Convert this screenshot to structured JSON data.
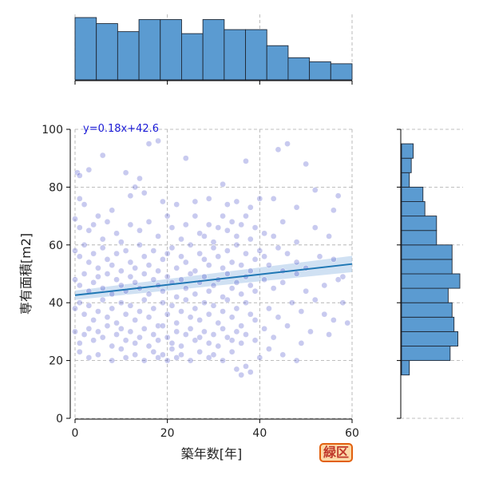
{
  "colors": {
    "hist_fill": "#5b9bd1",
    "hist_edge": "#1f2937",
    "point": "#3b3fc4",
    "reg_line": "#1f77b4",
    "ci_band": "#a9c9ea",
    "grid": "#aaaaaa",
    "annotation": "#1a1ad6",
    "badge_text": "#c0392b",
    "badge_bg": "#fcd9a8",
    "badge_border": "#e2600f"
  },
  "badge": {
    "text": "緑区"
  },
  "chart_data": {
    "type": "scatter",
    "title": "",
    "xlabel": "築年数[年]",
    "ylabel": "専有面積[m2]",
    "xlim": [
      0,
      60
    ],
    "ylim": [
      0,
      100
    ],
    "xticks": [
      "0",
      "20",
      "40",
      "60"
    ],
    "yticks": [
      "0",
      "20",
      "40",
      "60",
      "80",
      "100"
    ],
    "grid": true,
    "annotation": "y=0.18x+42.6",
    "regression": {
      "slope": 0.18,
      "intercept": 42.6,
      "ci_halfwidth_ends": [
        1.6,
        2.8
      ]
    },
    "points": [
      [
        0.5,
        85
      ],
      [
        1,
        84
      ],
      [
        3,
        86
      ],
      [
        6,
        91
      ],
      [
        11,
        85
      ],
      [
        14,
        83
      ],
      [
        16,
        95
      ],
      [
        18,
        96
      ],
      [
        24,
        90
      ],
      [
        32,
        81
      ],
      [
        37,
        89
      ],
      [
        44,
        93
      ],
      [
        46,
        95
      ],
      [
        50,
        88
      ],
      [
        52,
        79
      ],
      [
        57,
        77
      ],
      [
        1,
        76
      ],
      [
        2,
        74
      ],
      [
        5,
        70
      ],
      [
        8,
        72
      ],
      [
        12,
        77
      ],
      [
        13,
        80
      ],
      [
        15,
        78
      ],
      [
        19,
        75
      ],
      [
        22,
        74
      ],
      [
        26,
        75
      ],
      [
        29,
        76
      ],
      [
        33,
        74
      ],
      [
        35,
        75
      ],
      [
        38,
        73
      ],
      [
        40,
        76
      ],
      [
        43,
        76
      ],
      [
        48,
        73
      ],
      [
        56,
        72
      ],
      [
        0,
        69
      ],
      [
        1,
        66
      ],
      [
        3,
        65
      ],
      [
        4,
        67
      ],
      [
        6,
        62
      ],
      [
        7,
        68
      ],
      [
        9,
        64
      ],
      [
        10,
        61
      ],
      [
        12,
        67
      ],
      [
        14,
        65
      ],
      [
        16,
        68
      ],
      [
        18,
        63
      ],
      [
        20,
        70
      ],
      [
        21,
        66
      ],
      [
        23,
        62
      ],
      [
        24,
        67
      ],
      [
        26,
        70
      ],
      [
        27,
        64
      ],
      [
        28,
        63
      ],
      [
        29,
        67
      ],
      [
        30,
        61
      ],
      [
        31,
        66
      ],
      [
        32,
        70
      ],
      [
        33,
        65
      ],
      [
        34,
        68
      ],
      [
        35,
        63
      ],
      [
        36,
        67
      ],
      [
        37,
        70
      ],
      [
        38,
        62
      ],
      [
        39,
        66
      ],
      [
        41,
        64
      ],
      [
        43,
        63
      ],
      [
        45,
        68
      ],
      [
        48,
        61
      ],
      [
        52,
        66
      ],
      [
        55,
        63
      ],
      [
        0,
        58
      ],
      [
        1,
        56
      ],
      [
        2,
        60
      ],
      [
        3,
        54
      ],
      [
        4,
        57
      ],
      [
        5,
        52
      ],
      [
        6,
        59
      ],
      [
        7,
        55
      ],
      [
        8,
        53
      ],
      [
        9,
        57
      ],
      [
        10,
        51
      ],
      [
        11,
        58
      ],
      [
        12,
        54
      ],
      [
        13,
        52
      ],
      [
        14,
        60
      ],
      [
        15,
        56
      ],
      [
        16,
        53
      ],
      [
        17,
        58
      ],
      [
        18,
        51
      ],
      [
        19,
        55
      ],
      [
        20,
        57
      ],
      [
        21,
        59
      ],
      [
        22,
        52
      ],
      [
        23,
        56
      ],
      [
        24,
        54
      ],
      [
        25,
        60
      ],
      [
        26,
        51
      ],
      [
        27,
        57
      ],
      [
        28,
        55
      ],
      [
        29,
        53
      ],
      [
        30,
        59
      ],
      [
        31,
        56
      ],
      [
        32,
        52
      ],
      [
        33,
        58
      ],
      [
        34,
        54
      ],
      [
        35,
        60
      ],
      [
        36,
        53
      ],
      [
        37,
        57
      ],
      [
        38,
        51
      ],
      [
        39,
        55
      ],
      [
        40,
        58
      ],
      [
        41,
        56
      ],
      [
        42,
        53
      ],
      [
        44,
        59
      ],
      [
        45,
        51
      ],
      [
        46,
        57
      ],
      [
        48,
        54
      ],
      [
        50,
        52
      ],
      [
        53,
        56
      ],
      [
        56,
        55
      ],
      [
        58,
        49
      ],
      [
        0,
        48
      ],
      [
        1,
        46
      ],
      [
        2,
        50
      ],
      [
        3,
        44
      ],
      [
        4,
        47
      ],
      [
        5,
        49
      ],
      [
        6,
        45
      ],
      [
        7,
        50
      ],
      [
        8,
        43
      ],
      [
        9,
        48
      ],
      [
        10,
        46
      ],
      [
        11,
        44
      ],
      [
        12,
        49
      ],
      [
        13,
        47
      ],
      [
        14,
        45
      ],
      [
        15,
        50
      ],
      [
        16,
        43
      ],
      [
        17,
        48
      ],
      [
        18,
        46
      ],
      [
        19,
        44
      ],
      [
        20,
        49
      ],
      [
        21,
        47
      ],
      [
        22,
        42
      ],
      [
        23,
        48
      ],
      [
        24,
        45
      ],
      [
        25,
        50
      ],
      [
        26,
        43
      ],
      [
        27,
        47
      ],
      [
        28,
        49
      ],
      [
        29,
        44
      ],
      [
        30,
        46
      ],
      [
        31,
        48
      ],
      [
        32,
        42
      ],
      [
        33,
        50
      ],
      [
        34,
        45
      ],
      [
        35,
        47
      ],
      [
        36,
        43
      ],
      [
        37,
        49
      ],
      [
        38,
        46
      ],
      [
        39,
        44
      ],
      [
        41,
        48
      ],
      [
        43,
        45
      ],
      [
        45,
        47
      ],
      [
        48,
        50
      ],
      [
        50,
        44
      ],
      [
        54,
        46
      ],
      [
        57,
        48
      ],
      [
        0,
        38
      ],
      [
        1,
        40
      ],
      [
        2,
        36
      ],
      [
        3,
        39
      ],
      [
        4,
        34
      ],
      [
        5,
        37
      ],
      [
        6,
        41
      ],
      [
        7,
        35
      ],
      [
        8,
        38
      ],
      [
        9,
        33
      ],
      [
        10,
        40
      ],
      [
        11,
        36
      ],
      [
        12,
        39
      ],
      [
        13,
        34
      ],
      [
        14,
        37
      ],
      [
        15,
        41
      ],
      [
        16,
        35
      ],
      [
        17,
        38
      ],
      [
        18,
        32
      ],
      [
        19,
        40
      ],
      [
        20,
        36
      ],
      [
        21,
        39
      ],
      [
        22,
        33
      ],
      [
        23,
        37
      ],
      [
        24,
        41
      ],
      [
        25,
        35
      ],
      [
        26,
        38
      ],
      [
        27,
        34
      ],
      [
        28,
        40
      ],
      [
        29,
        36
      ],
      [
        30,
        39
      ],
      [
        31,
        33
      ],
      [
        32,
        37
      ],
      [
        33,
        41
      ],
      [
        34,
        35
      ],
      [
        35,
        38
      ],
      [
        36,
        32
      ],
      [
        37,
        40
      ],
      [
        38,
        36
      ],
      [
        39,
        34
      ],
      [
        42,
        38
      ],
      [
        44,
        35
      ],
      [
        47,
        40
      ],
      [
        49,
        37
      ],
      [
        52,
        41
      ],
      [
        54,
        36
      ],
      [
        56,
        34
      ],
      [
        58,
        40
      ],
      [
        0,
        30
      ],
      [
        1,
        26
      ],
      [
        2,
        29
      ],
      [
        3,
        31
      ],
      [
        4,
        27
      ],
      [
        5,
        30
      ],
      [
        6,
        28
      ],
      [
        7,
        32
      ],
      [
        8,
        25
      ],
      [
        9,
        29
      ],
      [
        10,
        31
      ],
      [
        11,
        27
      ],
      [
        12,
        30
      ],
      [
        13,
        26
      ],
      [
        14,
        28
      ],
      [
        15,
        31
      ],
      [
        16,
        25
      ],
      [
        17,
        29
      ],
      [
        18,
        27
      ],
      [
        19,
        32
      ],
      [
        20,
        28
      ],
      [
        21,
        26
      ],
      [
        22,
        30
      ],
      [
        23,
        25
      ],
      [
        24,
        29
      ],
      [
        25,
        31
      ],
      [
        26,
        27
      ],
      [
        27,
        28
      ],
      [
        28,
        30
      ],
      [
        29,
        26
      ],
      [
        30,
        29
      ],
      [
        31,
        25
      ],
      [
        32,
        31
      ],
      [
        33,
        28
      ],
      [
        34,
        27
      ],
      [
        35,
        30
      ],
      [
        36,
        26
      ],
      [
        37,
        29
      ],
      [
        39,
        27
      ],
      [
        41,
        31
      ],
      [
        43,
        28
      ],
      [
        46,
        32
      ],
      [
        49,
        26
      ],
      [
        51,
        30
      ],
      [
        55,
        29
      ],
      [
        59,
        33
      ],
      [
        1,
        23
      ],
      [
        3,
        21
      ],
      [
        5,
        22
      ],
      [
        8,
        20
      ],
      [
        10,
        24
      ],
      [
        11,
        21
      ],
      [
        13,
        22
      ],
      [
        15,
        20
      ],
      [
        17,
        23
      ],
      [
        18,
        21
      ],
      [
        19,
        22
      ],
      [
        20,
        20
      ],
      [
        21,
        24
      ],
      [
        22,
        21
      ],
      [
        23,
        22
      ],
      [
        25,
        20
      ],
      [
        27,
        23
      ],
      [
        29,
        21
      ],
      [
        30,
        22
      ],
      [
        32,
        20
      ],
      [
        34,
        23
      ],
      [
        35,
        17
      ],
      [
        36,
        15
      ],
      [
        37,
        18
      ],
      [
        38,
        16
      ],
      [
        40,
        21
      ],
      [
        42,
        24
      ],
      [
        45,
        22
      ],
      [
        48,
        20
      ]
    ]
  }
}
